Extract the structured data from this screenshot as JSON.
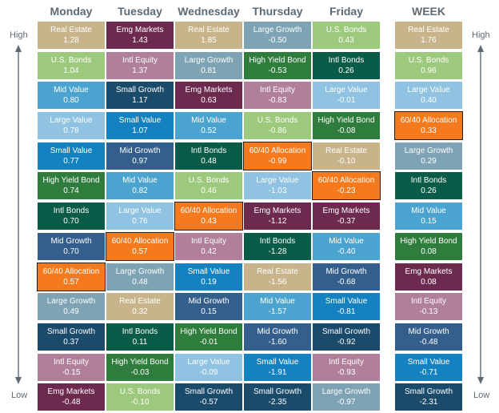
{
  "labels": {
    "high": "High",
    "low": "Low"
  },
  "colors": {
    "Real Estate": "#c8b48b",
    "U.S. Bonds": "#9dc97c",
    "Mid Value": "#4ba3cf",
    "Large Value": "#8fc3e1",
    "Small Value": "#1482c0",
    "High Yield Bond": "#2f7d3c",
    "Intl Bonds": "#0a5b48",
    "Mid Growth": "#345f8c",
    "60/40 Allocation": "#f47a1d",
    "Large Growth": "#7ea3b4",
    "Small Growth": "#1a4b6b",
    "Intl Equity": "#b07f9a",
    "Emg Markets": "#6d2a4f"
  },
  "chart_data": {
    "type": "table",
    "title": "",
    "columns": [
      {
        "day": "Monday",
        "items": [
          {
            "name": "Real Estate",
            "value": "1.28"
          },
          {
            "name": "U.S. Bonds",
            "value": "1.04"
          },
          {
            "name": "Mid Value",
            "value": "0.80"
          },
          {
            "name": "Large Value",
            "value": "0.78"
          },
          {
            "name": "Small Value",
            "value": "0.77"
          },
          {
            "name": "High Yield Bond",
            "value": "0.74"
          },
          {
            "name": "Intl Bonds",
            "value": "0.70"
          },
          {
            "name": "Mid Growth",
            "value": "0.70"
          },
          {
            "name": "60/40 Allocation",
            "value": "0.57"
          },
          {
            "name": "Large Growth",
            "value": "0.49"
          },
          {
            "name": "Small Growth",
            "value": "0.37"
          },
          {
            "name": "Intl Equity",
            "value": "-0.15"
          },
          {
            "name": "Emg Markets",
            "value": "-0.48"
          }
        ]
      },
      {
        "day": "Tuesday",
        "items": [
          {
            "name": "Emg Markets",
            "value": "1.43"
          },
          {
            "name": "Intl Equity",
            "value": "1.37"
          },
          {
            "name": "Small Growth",
            "value": "1.17"
          },
          {
            "name": "Small Value",
            "value": "1.07"
          },
          {
            "name": "Mid Growth",
            "value": "0.97"
          },
          {
            "name": "Mid Value",
            "value": "0.82"
          },
          {
            "name": "Large Value",
            "value": "0.76"
          },
          {
            "name": "60/40 Allocation",
            "value": "0.57"
          },
          {
            "name": "Large Growth",
            "value": "0.48"
          },
          {
            "name": "Real Estate",
            "value": "0.32"
          },
          {
            "name": "Intl Bonds",
            "value": "0.11"
          },
          {
            "name": "High Yield Bond",
            "value": "-0.03"
          },
          {
            "name": "U.S. Bonds",
            "value": "-0.10"
          }
        ]
      },
      {
        "day": "Wednesday",
        "items": [
          {
            "name": "Real Estate",
            "value": "1.85"
          },
          {
            "name": "Large Growth",
            "value": "0.81"
          },
          {
            "name": "Emg Markets",
            "value": "0.63"
          },
          {
            "name": "Mid Value",
            "value": "0.52"
          },
          {
            "name": "Intl Bonds",
            "value": "0.48"
          },
          {
            "name": "U.S. Bonds",
            "value": "0.46"
          },
          {
            "name": "60/40 Allocation",
            "value": "0.43"
          },
          {
            "name": "Intl Equity",
            "value": "0.42"
          },
          {
            "name": "Small Value",
            "value": "0.19"
          },
          {
            "name": "Mid Growth",
            "value": "0.15"
          },
          {
            "name": "High Yield Bond",
            "value": "-0.01"
          },
          {
            "name": "Large Value",
            "value": "-0.09"
          },
          {
            "name": "Small Growth",
            "value": "-0.57"
          }
        ]
      },
      {
        "day": "Thursday",
        "items": [
          {
            "name": "Large Growth",
            "value": "-0.50"
          },
          {
            "name": "High Yield Bond",
            "value": "-0.53"
          },
          {
            "name": "Intl Equity",
            "value": "-0.83"
          },
          {
            "name": "U.S. Bonds",
            "value": "-0.86"
          },
          {
            "name": "60/40 Allocation",
            "value": "-0.99"
          },
          {
            "name": "Large Value",
            "value": "-1.03"
          },
          {
            "name": "Emg Markets",
            "value": "-1.12"
          },
          {
            "name": "Intl Bonds",
            "value": "-1.28"
          },
          {
            "name": "Real Estate",
            "value": "-1.56"
          },
          {
            "name": "Mid Value",
            "value": "-1.57"
          },
          {
            "name": "Mid Growth",
            "value": "-1.60"
          },
          {
            "name": "Small Value",
            "value": "-1.91"
          },
          {
            "name": "Small Growth",
            "value": "-2.35"
          }
        ]
      },
      {
        "day": "Friday",
        "items": [
          {
            "name": "U.S. Bonds",
            "value": "0.43"
          },
          {
            "name": "Intl Bonds",
            "value": "0.26"
          },
          {
            "name": "Large Value",
            "value": "-0.01"
          },
          {
            "name": "High Yield Bond",
            "value": "-0.08"
          },
          {
            "name": "Real Estate",
            "value": "-0.10"
          },
          {
            "name": "60/40 Allocation",
            "value": "-0.23"
          },
          {
            "name": "Emg Markets",
            "value": "-0.37"
          },
          {
            "name": "Mid Value",
            "value": "-0.40"
          },
          {
            "name": "Mid Growth",
            "value": "-0.68"
          },
          {
            "name": "Small Value",
            "value": "-0.81"
          },
          {
            "name": "Small Growth",
            "value": "-0.92"
          },
          {
            "name": "Intl Equity",
            "value": "-0.93"
          },
          {
            "name": "Large Growth",
            "value": "-0.97"
          }
        ]
      },
      {
        "day": "WEEK",
        "items": [
          {
            "name": "Real Estate",
            "value": "1.76"
          },
          {
            "name": "U.S. Bonds",
            "value": "0.96"
          },
          {
            "name": "Large Value",
            "value": "0.40"
          },
          {
            "name": "60/40 Allocation",
            "value": "0.33"
          },
          {
            "name": "Large Growth",
            "value": "0.29"
          },
          {
            "name": "Intl Bonds",
            "value": "0.26"
          },
          {
            "name": "Mid Value",
            "value": "0.15"
          },
          {
            "name": "High Yield Bond",
            "value": "0.08"
          },
          {
            "name": "Emg Markets",
            "value": "0.08"
          },
          {
            "name": "Intl Equity",
            "value": "-0.13"
          },
          {
            "name": "Mid Growth",
            "value": "-0.48"
          },
          {
            "name": "Small Value",
            "value": "-0.71"
          },
          {
            "name": "Small Growth",
            "value": "-2.31"
          }
        ]
      }
    ]
  }
}
